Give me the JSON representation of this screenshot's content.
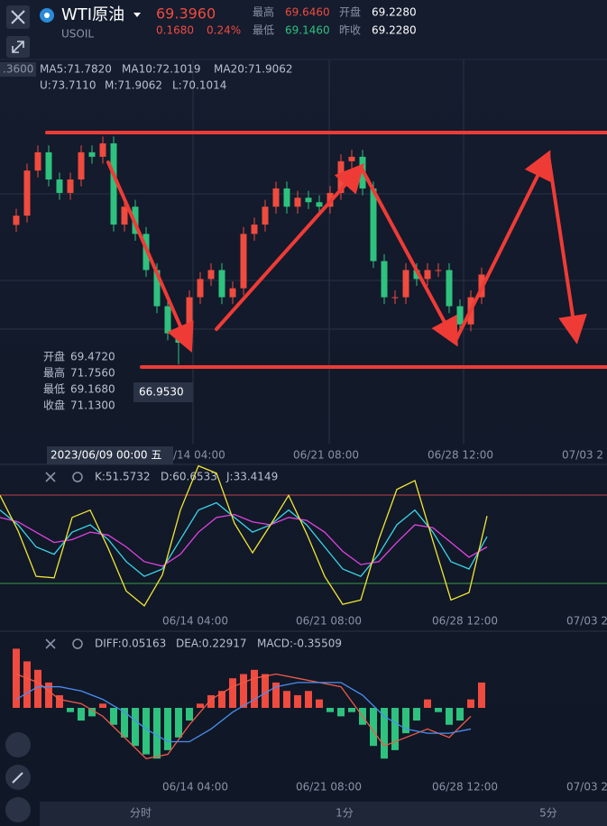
{
  "header": {
    "symbol": "WTI原油",
    "code": "USOIL",
    "price": "69.3960",
    "change": "0.1680",
    "change_pct": "0.24%",
    "high_label": "最高",
    "high": "69.6460",
    "open_label": "开盘",
    "open": "69.2280",
    "low_label": "最低",
    "low": "69.1460",
    "prev_close_label": "昨收",
    "prev_close": "69.2280"
  },
  "main_panel": {
    "axis_tag": ".3600",
    "ma_legend": [
      "MA5:71.7820",
      "MA10:72.1019",
      "MA20:71.9062"
    ],
    "boll_legend": [
      "U:73.7110",
      "M:71.9062",
      "L:70.1014"
    ],
    "tooltip": [
      {
        "label": "开盘",
        "value": "69.4720"
      },
      {
        "label": "最高",
        "value": "71.7560"
      },
      {
        "label": "最低",
        "value": "69.1680"
      },
      {
        "label": "收盘",
        "value": "71.1300"
      }
    ],
    "low_marker": "66.9530",
    "cursor_time": "2023/06/09 00:00 五",
    "x_labels": [
      "/14 04:00",
      "06/21 08:00",
      "06/28 12:00",
      "07/03 2"
    ],
    "ylim": [
      64.7,
      75.7
    ],
    "candles": {
      "open": [
        71.0,
        71.27,
        72.58,
        73.11,
        72.32,
        71.93,
        72.32,
        73.11,
        72.98,
        73.37,
        71.01,
        71.53,
        70.74,
        69.69,
        68.64,
        67.85,
        67.58,
        68.9,
        69.43,
        69.69,
        68.9,
        69.16,
        70.74,
        71.01,
        71.53,
        72.06,
        71.53,
        71.79,
        71.66,
        71.53,
        71.93,
        72.85,
        72.98,
        72.06,
        69.95,
        68.9,
        68.9,
        69.69,
        69.43,
        69.69,
        69.69,
        68.64,
        68.11,
        68.9
      ],
      "high": [
        71.47,
        72.78,
        73.31,
        73.31,
        72.52,
        72.52,
        73.31,
        73.31,
        73.57,
        73.57,
        71.73,
        71.73,
        70.94,
        69.89,
        68.84,
        68.05,
        69.1,
        69.63,
        69.89,
        69.89,
        69.36,
        70.94,
        71.21,
        71.73,
        72.26,
        72.26,
        71.99,
        71.99,
        71.86,
        72.13,
        73.05,
        73.18,
        73.18,
        72.26,
        70.15,
        69.1,
        69.89,
        69.89,
        69.89,
        69.89,
        69.89,
        68.84,
        69.1,
        69.76
      ],
      "low": [
        70.8,
        71.07,
        72.38,
        72.12,
        71.73,
        71.73,
        72.12,
        72.78,
        72.78,
        70.81,
        70.81,
        70.54,
        69.49,
        68.44,
        67.65,
        66.95,
        67.38,
        68.7,
        69.23,
        68.7,
        68.7,
        68.96,
        70.54,
        70.81,
        71.33,
        71.33,
        71.33,
        71.46,
        71.33,
        71.33,
        71.73,
        72.65,
        71.86,
        69.75,
        68.7,
        68.7,
        68.7,
        69.23,
        69.23,
        69.49,
        68.44,
        67.91,
        67.91,
        68.7
      ],
      "close": [
        71.27,
        72.58,
        73.11,
        72.32,
        71.93,
        72.32,
        73.11,
        72.98,
        73.37,
        71.01,
        71.53,
        70.74,
        69.69,
        68.64,
        67.85,
        67.58,
        68.9,
        69.43,
        69.69,
        68.9,
        69.16,
        70.74,
        71.01,
        71.53,
        72.06,
        71.53,
        71.79,
        71.66,
        71.53,
        71.93,
        72.85,
        72.98,
        72.06,
        69.95,
        68.9,
        68.9,
        69.69,
        69.43,
        69.69,
        69.69,
        68.64,
        68.11,
        68.9,
        69.56
      ]
    }
  },
  "kdj_panel": {
    "legend": [
      {
        "text": "K:51.5732",
        "color": "#3ad6e8"
      },
      {
        "text": "D:60.6533",
        "color": "#e044e0"
      },
      {
        "text": "J:33.4149",
        "color": "#f2e632"
      }
    ],
    "x_labels": [
      "06/14 04:00",
      "06/21 08:00",
      "06/28 12:00",
      "07/03 2"
    ],
    "ylim": [
      -11,
      101
    ],
    "series": [
      {
        "name": "K",
        "color": "#3ad6e8",
        "values": [
          70,
          60,
          45,
          40,
          55,
          60,
          50,
          35,
          25,
          30,
          50,
          70,
          75,
          65,
          55,
          60,
          70,
          60,
          45,
          30,
          25,
          40,
          60,
          70,
          55,
          35,
          30,
          52
        ]
      },
      {
        "name": "D",
        "color": "#e044e0",
        "values": [
          65,
          62,
          55,
          48,
          50,
          55,
          53,
          45,
          35,
          32,
          40,
          55,
          65,
          67,
          62,
          60,
          65,
          63,
          55,
          42,
          33,
          35,
          48,
          60,
          58,
          48,
          38,
          45
        ]
      },
      {
        "name": "J",
        "color": "#f2e632",
        "values": [
          80,
          56,
          25,
          24,
          65,
          70,
          44,
          15,
          5,
          26,
          70,
          100,
          95,
          61,
          41,
          60,
          80,
          54,
          25,
          6,
          9,
          50,
          84,
          90,
          49,
          9,
          14,
          66
        ]
      }
    ]
  },
  "macd_panel": {
    "legend": [
      {
        "text": "DIFF:0.05163",
        "color": "#ef5a4a"
      },
      {
        "text": "DEA:0.22917",
        "color": "#4a8ef0"
      },
      {
        "text": "MACD:-0.35509",
        "color": "#4a8ef0"
      }
    ],
    "x_labels": [
      "06/14 04:00",
      "06/21 08:00",
      "06/28 12:00",
      "07/03 2"
    ],
    "ylim": [
      -0.8,
      0.8
    ],
    "histogram": [
      0.7,
      0.55,
      0.45,
      0.3,
      0.15,
      -0.05,
      -0.15,
      -0.1,
      0.05,
      -0.2,
      -0.35,
      -0.45,
      -0.55,
      -0.6,
      -0.5,
      -0.35,
      -0.15,
      0.05,
      0.15,
      0.2,
      0.35,
      0.4,
      0.45,
      0.4,
      0.3,
      0.2,
      0.15,
      0.2,
      0.1,
      -0.05,
      -0.1,
      -0.05,
      -0.2,
      -0.45,
      -0.6,
      -0.5,
      -0.3,
      -0.15,
      0.1,
      -0.05,
      -0.2,
      -0.15,
      0.1,
      0.3
    ],
    "diff": [
      0.4,
      0.3,
      0.1,
      0.05,
      -0.1,
      -0.35,
      -0.6,
      -0.55,
      -0.2,
      0.1,
      0.25,
      0.35,
      0.4,
      0.35,
      0.3,
      0.25,
      -0.1,
      -0.45,
      -0.35,
      -0.25,
      -0.35,
      -0.1
    ],
    "dea": [
      0.1,
      0.25,
      0.25,
      0.2,
      0.1,
      -0.05,
      -0.25,
      -0.4,
      -0.4,
      -0.25,
      -0.05,
      0.1,
      0.25,
      0.3,
      0.3,
      0.3,
      0.15,
      -0.1,
      -0.25,
      -0.3,
      -0.3,
      -0.25
    ]
  },
  "tabs": [
    "分时",
    "1分",
    "5分"
  ]
}
